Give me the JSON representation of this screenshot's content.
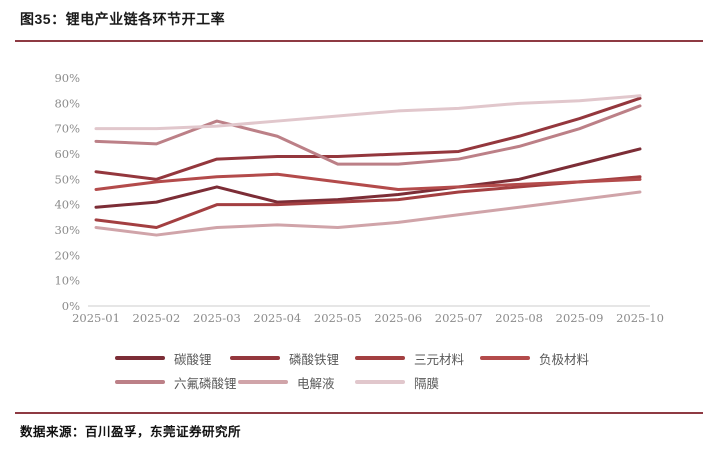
{
  "header": {
    "title": "图35：锂电产业链各环节开工率"
  },
  "chart_data": {
    "type": "line",
    "title": "锂电产业链各环节开工率",
    "categories": [
      "2025-01",
      "2025-02",
      "2025-03",
      "2025-04",
      "2025-05",
      "2025-06",
      "2025-07",
      "2025-08",
      "2025-09",
      "2025-10"
    ],
    "series": [
      {
        "name": "碳酸锂",
        "color": "#7C2D36",
        "values": [
          39,
          41,
          47,
          41,
          42,
          44,
          47,
          50,
          56,
          62
        ]
      },
      {
        "name": "磷酸铁锂",
        "color": "#94373D",
        "values": [
          53,
          50,
          58,
          59,
          59,
          60,
          61,
          67,
          74,
          82
        ]
      },
      {
        "name": "三元材料",
        "color": "#A33F41",
        "values": [
          34,
          31,
          40,
          40,
          41,
          42,
          45,
          47,
          49,
          51
        ]
      },
      {
        "name": "负极材料",
        "color": "#B34B4B",
        "values": [
          46,
          49,
          51,
          52,
          49,
          46,
          47,
          48,
          49,
          50
        ]
      },
      {
        "name": "六氟磷酸锂",
        "color": "#BC8087",
        "values": [
          65,
          64,
          73,
          67,
          56,
          56,
          58,
          63,
          70,
          79
        ]
      },
      {
        "name": "电解液",
        "color": "#D0A4A9",
        "values": [
          31,
          28,
          31,
          32,
          31,
          33,
          36,
          39,
          42,
          45
        ]
      },
      {
        "name": "隔膜",
        "color": "#E1C7CC",
        "values": [
          70,
          70,
          71,
          73,
          75,
          77,
          78,
          80,
          81,
          83
        ]
      }
    ],
    "xlabel": "",
    "ylabel": "",
    "ylim": [
      0,
      90
    ],
    "yticks": [
      "0%",
      "10%",
      "20%",
      "30%",
      "40%",
      "50%",
      "60%",
      "70%",
      "80%",
      "90%"
    ],
    "grid": false,
    "legend_position": "bottom",
    "unit": "%"
  },
  "footer": {
    "source": "数据来源：百川盈孚，东莞证券研究所"
  },
  "colors": {
    "rule": "#8E3A43",
    "axis_line": "#CCCCCC",
    "tick_label": "#8C8C8C",
    "legend_label": "#595959"
  }
}
